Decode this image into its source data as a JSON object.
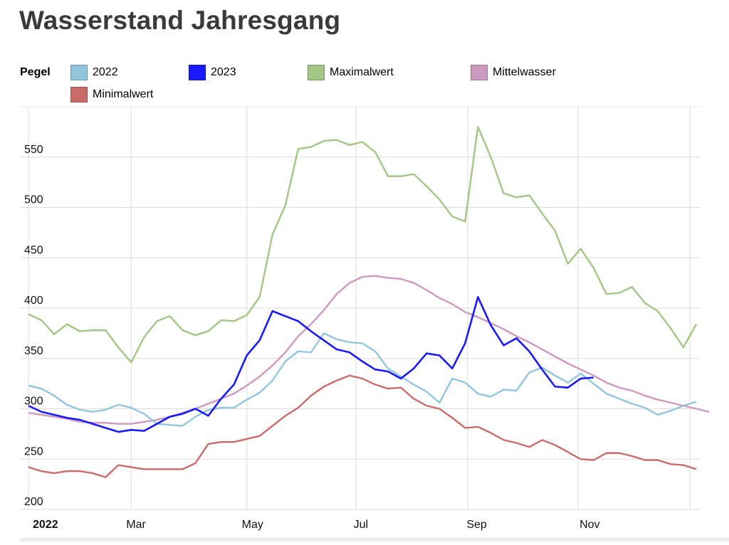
{
  "header": {
    "title": "Wasserstand Jahresgang"
  },
  "legend": {
    "title": "Pegel",
    "items": [
      {
        "label": "2022",
        "color": "#92c5de"
      },
      {
        "label": "2023",
        "color": "#1a1aff"
      },
      {
        "label": "Maximalwert",
        "color": "#a3c585"
      },
      {
        "label": "Mittelwasser",
        "color": "#cc99bf"
      },
      {
        "label": "Minimalwert",
        "color": "#c96b6b"
      }
    ]
  },
  "chart_data": {
    "type": "line",
    "title": "Wasserstand Jahresgang",
    "xlabel": "",
    "ylabel": "",
    "ylim": [
      200,
      600
    ],
    "yticks": [
      200,
      250,
      300,
      350,
      400,
      450,
      500,
      550
    ],
    "xticks": [
      {
        "label": "2022",
        "week": 0.5,
        "bold": true
      },
      {
        "label": "Mar",
        "week": 8.5
      },
      {
        "label": "May",
        "week": 17.5
      },
      {
        "label": "Jul",
        "week": 26.2
      },
      {
        "label": "Sep",
        "week": 35
      },
      {
        "label": "Nov",
        "week": 43.8
      }
    ],
    "grid": true,
    "legend_position": "top",
    "series": [
      {
        "name": "Maximalwert",
        "color": "#a3c585",
        "values": [
          394,
          388,
          374,
          384,
          377,
          378,
          378,
          361,
          346,
          371,
          387,
          392,
          378,
          373,
          377,
          388,
          387,
          393,
          411,
          473,
          502,
          558,
          560,
          566,
          567,
          562,
          565,
          555,
          531,
          531,
          533,
          521,
          508,
          491,
          486,
          580,
          550,
          514,
          510,
          512,
          494,
          477,
          444,
          459,
          440,
          414,
          415,
          421,
          405,
          397,
          380,
          361,
          384
        ]
      },
      {
        "name": "Mittelwasser",
        "color": "#cc99bf",
        "values": [
          296,
          294,
          292,
          290,
          287,
          286,
          286,
          285,
          285,
          287,
          289,
          292,
          296,
          300,
          305,
          310,
          315,
          323,
          332,
          343,
          356,
          372,
          384,
          398,
          414,
          425,
          431,
          432,
          430,
          429,
          425,
          418,
          410,
          404,
          396,
          391,
          385,
          379,
          372,
          366,
          359,
          352,
          345,
          339,
          333,
          326,
          321,
          318,
          313,
          309,
          306,
          303,
          300,
          297
        ]
      },
      {
        "name": "Minimalwert",
        "color": "#c96b6b",
        "values": [
          242,
          238,
          236,
          238,
          238,
          236,
          232,
          244,
          242,
          240,
          240,
          240,
          240,
          246,
          265,
          267,
          267,
          270,
          273,
          283,
          293,
          301,
          313,
          322,
          328,
          333,
          330,
          324,
          320,
          321,
          310,
          303,
          300,
          291,
          281,
          282,
          276,
          269,
          266,
          262,
          269,
          264,
          257,
          250,
          249,
          256,
          256,
          253,
          249,
          249,
          245,
          244,
          240
        ]
      },
      {
        "name": "2022",
        "color": "#92c5de",
        "values": [
          323,
          320,
          313,
          304,
          299,
          297,
          299,
          304,
          301,
          295,
          285,
          284,
          283,
          292,
          299,
          301,
          301,
          309,
          316,
          328,
          347,
          357,
          356,
          375,
          369,
          366,
          365,
          357,
          340,
          332,
          324,
          317,
          306,
          330,
          326,
          315,
          312,
          319,
          318,
          336,
          341,
          333,
          326,
          335,
          325,
          315,
          310,
          305,
          301,
          294,
          298,
          303,
          307
        ]
      },
      {
        "name": "2023",
        "color": "#1a1aff",
        "values": [
          303,
          297,
          294,
          291,
          289,
          285,
          281,
          277,
          279,
          278,
          285,
          292,
          295,
          300,
          293,
          310,
          324,
          353,
          368,
          397,
          392,
          387,
          377,
          368,
          359,
          356,
          347,
          339,
          337,
          330,
          340,
          355,
          353,
          340,
          365,
          411,
          383,
          363,
          370,
          357,
          339,
          322,
          321,
          330,
          331
        ]
      }
    ]
  }
}
